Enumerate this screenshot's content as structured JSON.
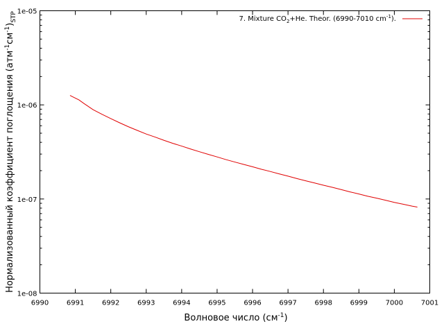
{
  "chart_data": {
    "type": "line",
    "xlabel": {
      "text": "Волновое число (см",
      "sup": "-1",
      "suffix": ")"
    },
    "ylabel": {
      "pre": "Нормализованный коэффициент поглощения (атм",
      "sup1": "-1",
      "mid": "см",
      "sup2": "-1",
      "post": ")",
      "sub": "STP"
    },
    "xlim": [
      6990,
      7001
    ],
    "ylim": [
      1e-08,
      1e-05
    ],
    "yscale": "log",
    "grid": false,
    "legend_position": "top-right",
    "x_ticks": [
      "6990",
      "6991",
      "6992",
      "6993",
      "6994",
      "6995",
      "6996",
      "6997",
      "6998",
      "6999",
      "7000",
      "7001"
    ],
    "y_ticks": [
      {
        "value": 1e-08,
        "label": "1e-08"
      },
      {
        "value": 1e-07,
        "label": "1e-07"
      },
      {
        "value": 1e-06,
        "label": "1e-06"
      },
      {
        "value": 1e-05,
        "label": "1e-05"
      }
    ],
    "series": [
      {
        "name": "7. Mixture CO2+He. Theor. (6990-7010 cm-1).",
        "legend": {
          "p1": "7. Mixture CO",
          "sub": "2",
          "p2": "+He. Theor. (6990-7010 cm",
          "sup": "-1",
          "p3": ")."
        },
        "color": "#e00000",
        "x": [
          6990.85,
          6991.0,
          6991.1,
          6991.25,
          6991.5,
          6991.75,
          6992.0,
          6992.25,
          6992.5,
          6992.75,
          6993.0,
          6993.25,
          6993.5,
          6993.75,
          6994.0,
          6994.25,
          6994.5,
          6994.75,
          6995.0,
          6995.25,
          6995.5,
          6995.75,
          6996.0,
          6996.25,
          6996.5,
          6996.75,
          6997.0,
          6997.25,
          6997.5,
          6997.75,
          6998.0,
          6998.25,
          6998.5,
          6998.75,
          6999.0,
          6999.25,
          6999.5,
          6999.75,
          7000.0,
          7000.25,
          7000.5,
          7000.65
        ],
        "y": [
          1.26e-06,
          1.18e-06,
          1.13e-06,
          1.03e-06,
          8.9e-07,
          7.95e-07,
          7.15e-07,
          6.45e-07,
          5.85e-07,
          5.35e-07,
          4.9e-07,
          4.55e-07,
          4.2e-07,
          3.9e-07,
          3.65e-07,
          3.4e-07,
          3.18e-07,
          2.98e-07,
          2.8e-07,
          2.62e-07,
          2.47e-07,
          2.33e-07,
          2.2e-07,
          2.07e-07,
          1.96e-07,
          1.85e-07,
          1.75e-07,
          1.65e-07,
          1.56e-07,
          1.48e-07,
          1.4e-07,
          1.33e-07,
          1.26e-07,
          1.19e-07,
          1.13e-07,
          1.07e-07,
          1.02e-07,
          9.7e-08,
          9.2e-08,
          8.8e-08,
          8.4e-08,
          8.2e-08
        ]
      }
    ]
  }
}
